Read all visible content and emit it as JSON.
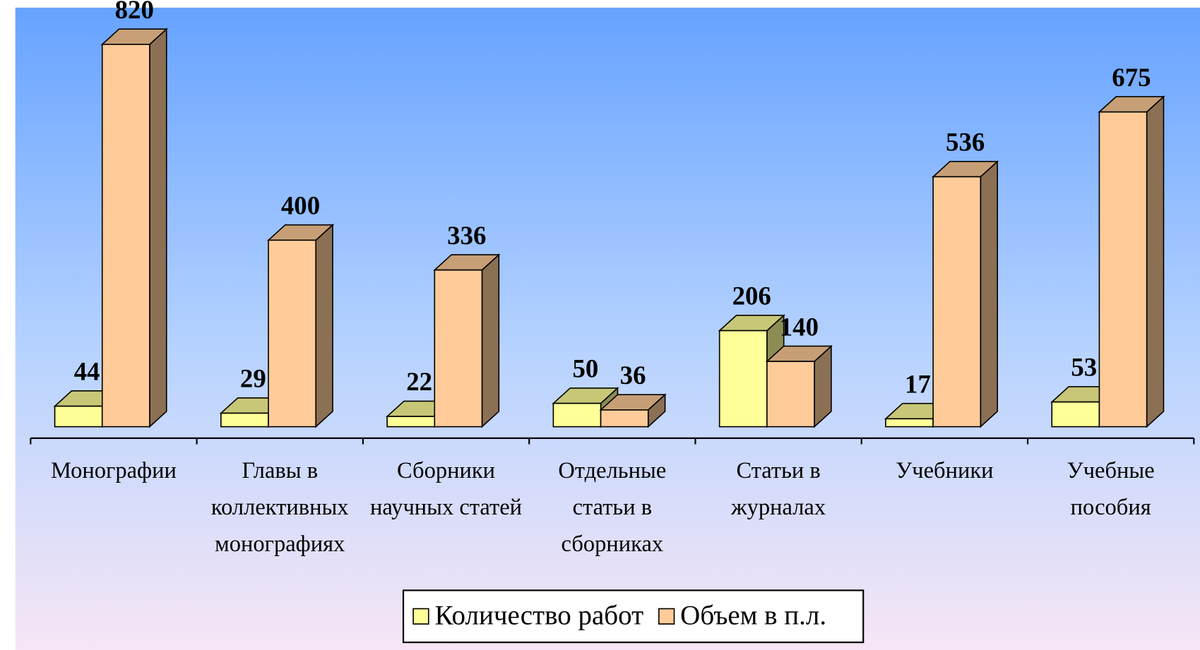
{
  "chart_data": {
    "type": "bar3d",
    "categories": [
      "Монографии",
      "Главы в коллективных монографиях",
      "Сборники научных статей",
      "Отдельные статьи в сборниках",
      "Статьи в журналах",
      "Учебники",
      "Учебные пособия"
    ],
    "series": [
      {
        "name": "Количество работ",
        "color": "#ffff99",
        "values": [
          44,
          29,
          22,
          50,
          206,
          17,
          53
        ]
      },
      {
        "name": "Объем в п.л.",
        "color": "#ffcc99",
        "values": [
          820,
          400,
          336,
          36,
          140,
          536,
          675
        ]
      }
    ],
    "legend": "bottom"
  }
}
